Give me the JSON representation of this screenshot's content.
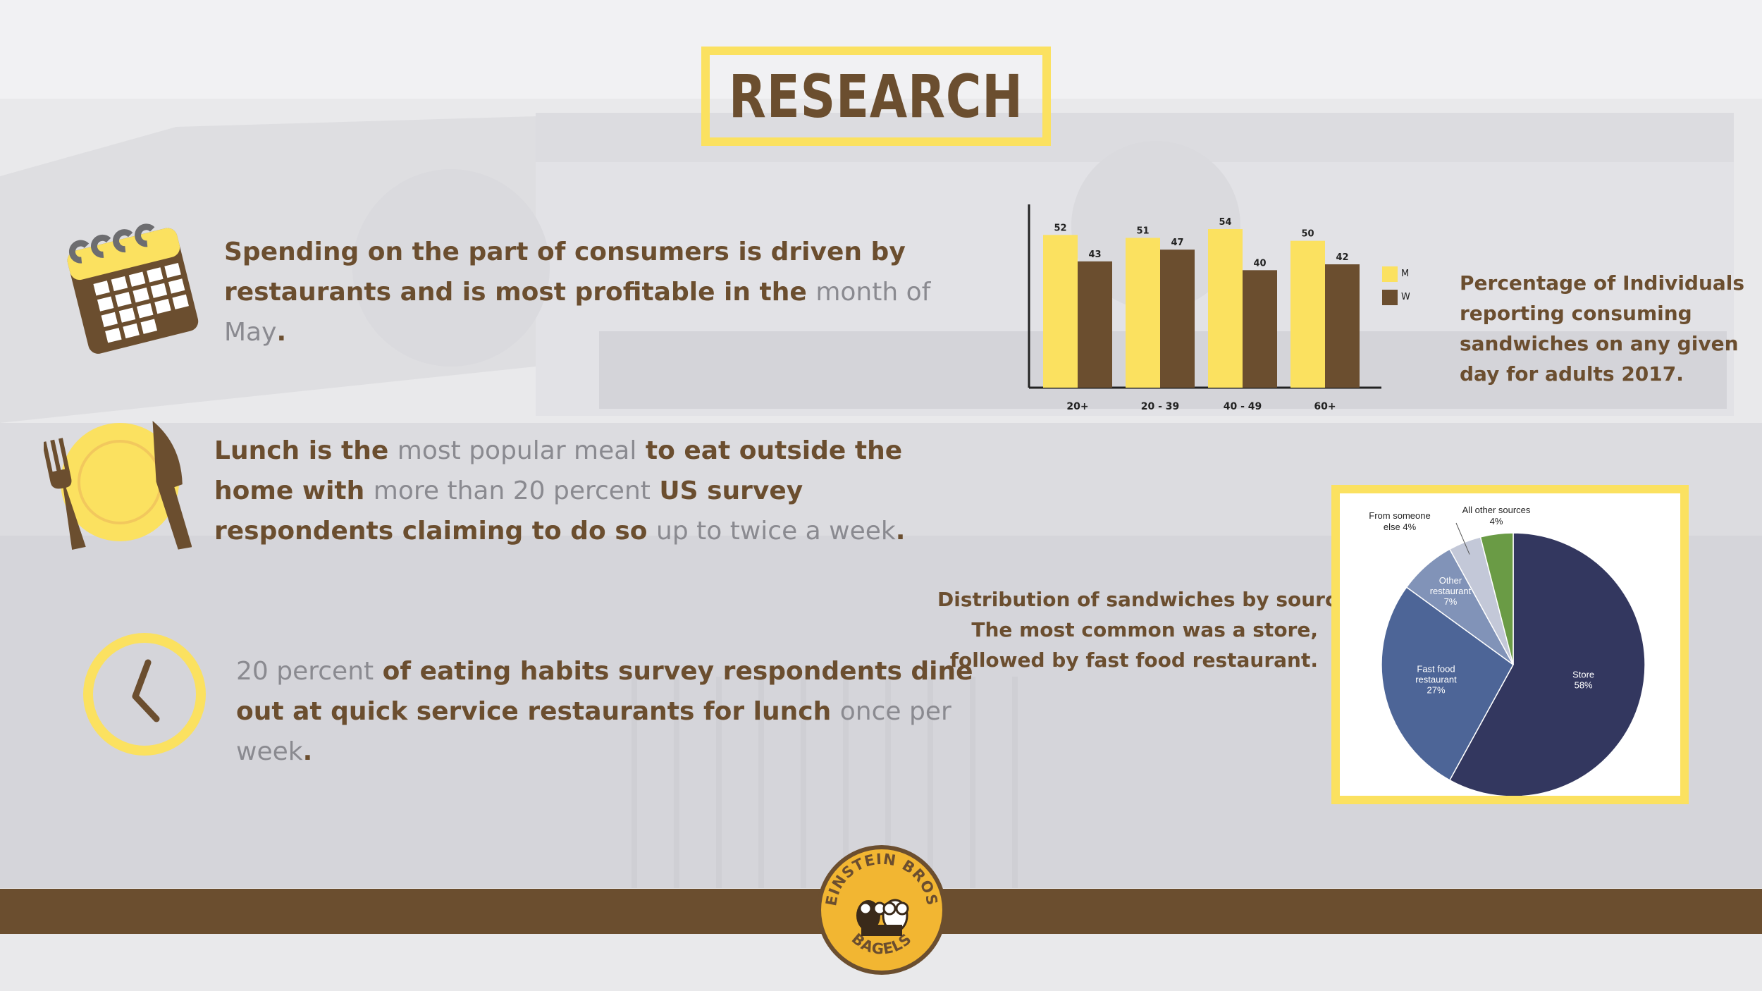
{
  "title": "RESEARCH",
  "facts": [
    {
      "parts": [
        {
          "text": "Spending on the part of consumers is driven by restaurants and is most profitable in the ",
          "hl": false
        },
        {
          "text": "month of May",
          "hl": true
        },
        {
          "text": ".",
          "hl": false
        }
      ],
      "icon": "calendar-icon"
    },
    {
      "parts": [
        {
          "text": "Lunch is the ",
          "hl": false
        },
        {
          "text": "most popular meal",
          "hl": true
        },
        {
          "text": " to eat outside the home with ",
          "hl": false
        },
        {
          "text": "more than 20 percent",
          "hl": true
        },
        {
          "text": " US survey respondents claiming to do so ",
          "hl": false
        },
        {
          "text": "up to twice a week",
          "hl": true
        },
        {
          "text": ".",
          "hl": false
        }
      ],
      "icon": "plate-fork-knife-icon"
    },
    {
      "parts": [
        {
          "text": "20 percent",
          "hl": true
        },
        {
          "text": " of eating habits survey respondents dine out at quick service restaurants for lunch ",
          "hl": false
        },
        {
          "text": "once per week",
          "hl": true
        },
        {
          "text": ".",
          "hl": false
        }
      ],
      "icon": "clock-icon"
    }
  ],
  "bar_caption": [
    "Percentage of Individuals",
    " reporting consuming",
    " sandwiches on any given",
    "day for adults 2017."
  ],
  "pie_caption": [
    "Distribution of sandwiches by source:",
    "The most common was a store,",
    "followed by fast food restaurant."
  ],
  "logo": {
    "top_text": "EINSTEIN BROS",
    "bottom_text": "BAGELS"
  },
  "colors": {
    "brown": "#6b4e2f",
    "yellow": "#fbe160",
    "gray_text": "#8a8a90"
  },
  "chart_data": [
    {
      "type": "bar",
      "categories": [
        "20+",
        "20 - 39",
        "40 - 49",
        "60+"
      ],
      "series": [
        {
          "name": "Men",
          "values": [
            52,
            51,
            54,
            50
          ],
          "color": "#fbe160"
        },
        {
          "name": "Women",
          "values": [
            43,
            47,
            40,
            42
          ],
          "color": "#6b4e2f"
        }
      ],
      "ylim": [
        0,
        60
      ],
      "legend": "right",
      "grid": false
    },
    {
      "type": "pie",
      "slices": [
        {
          "label": "Store",
          "value": 58,
          "color": "#33375f"
        },
        {
          "label": "Fast food restaurant",
          "value": 27,
          "color": "#4d6597"
        },
        {
          "label": "Other restaurant",
          "value": 7,
          "color": "#8193b8"
        },
        {
          "label": "From someone else",
          "value": 4,
          "color": "#c3c8d8"
        },
        {
          "label": "All other sources",
          "value": 4,
          "color": "#6a9b45"
        }
      ]
    }
  ]
}
